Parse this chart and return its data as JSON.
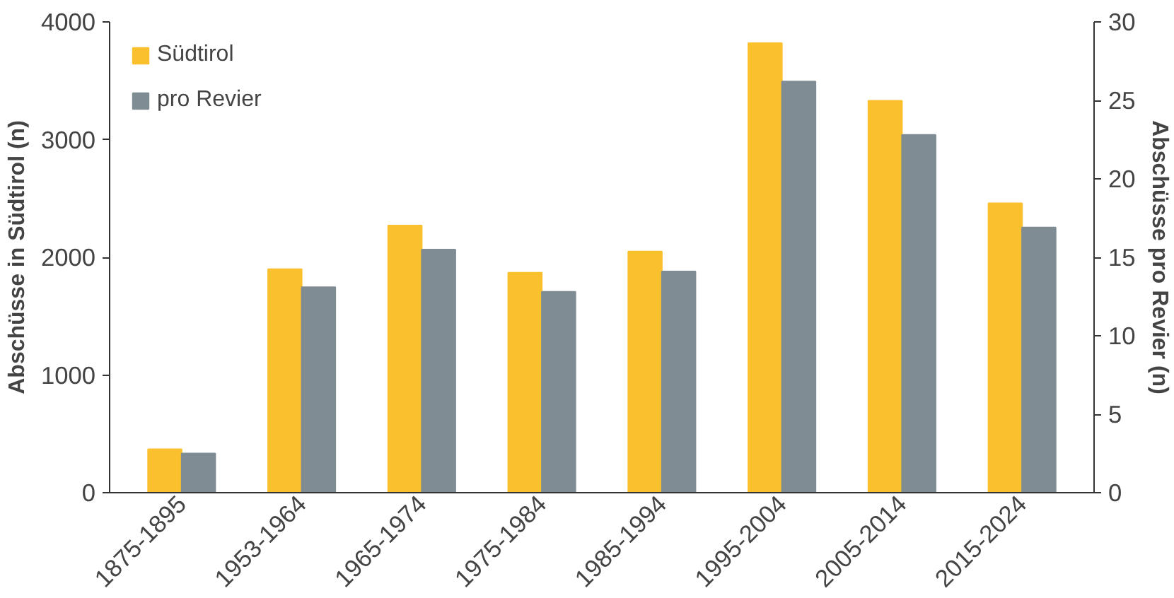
{
  "chart_data": {
    "type": "bar",
    "ylabel": "Abschüsse in Südtirol (n)",
    "y2label": "Abschüsse pro Revier (n)",
    "categories": [
      "1875-1895",
      "1953-1964",
      "1965-1974",
      "1975-1984",
      "1985-1994",
      "1995-2004",
      "2005-2014",
      "2015-2024"
    ],
    "series": [
      {
        "name": "Südtirol",
        "color": "#fbc02d",
        "values": [
          370,
          1900,
          2270,
          1870,
          2050,
          3820,
          3330,
          2460
        ]
      },
      {
        "name": "pro Revier",
        "color": "#7f8c93",
        "axis": "y2",
        "values": [
          2.5,
          13.1,
          15.5,
          12.8,
          14.1,
          26.2,
          22.8,
          16.9
        ]
      }
    ],
    "ylim": [
      0,
      4000
    ],
    "yticks": [
      0,
      1000,
      2000,
      3000,
      4000
    ],
    "y2lim": [
      0,
      30
    ],
    "y2ticks": [
      0,
      5,
      10,
      15,
      20,
      25,
      30
    ],
    "grid": false,
    "legend": "top left"
  }
}
